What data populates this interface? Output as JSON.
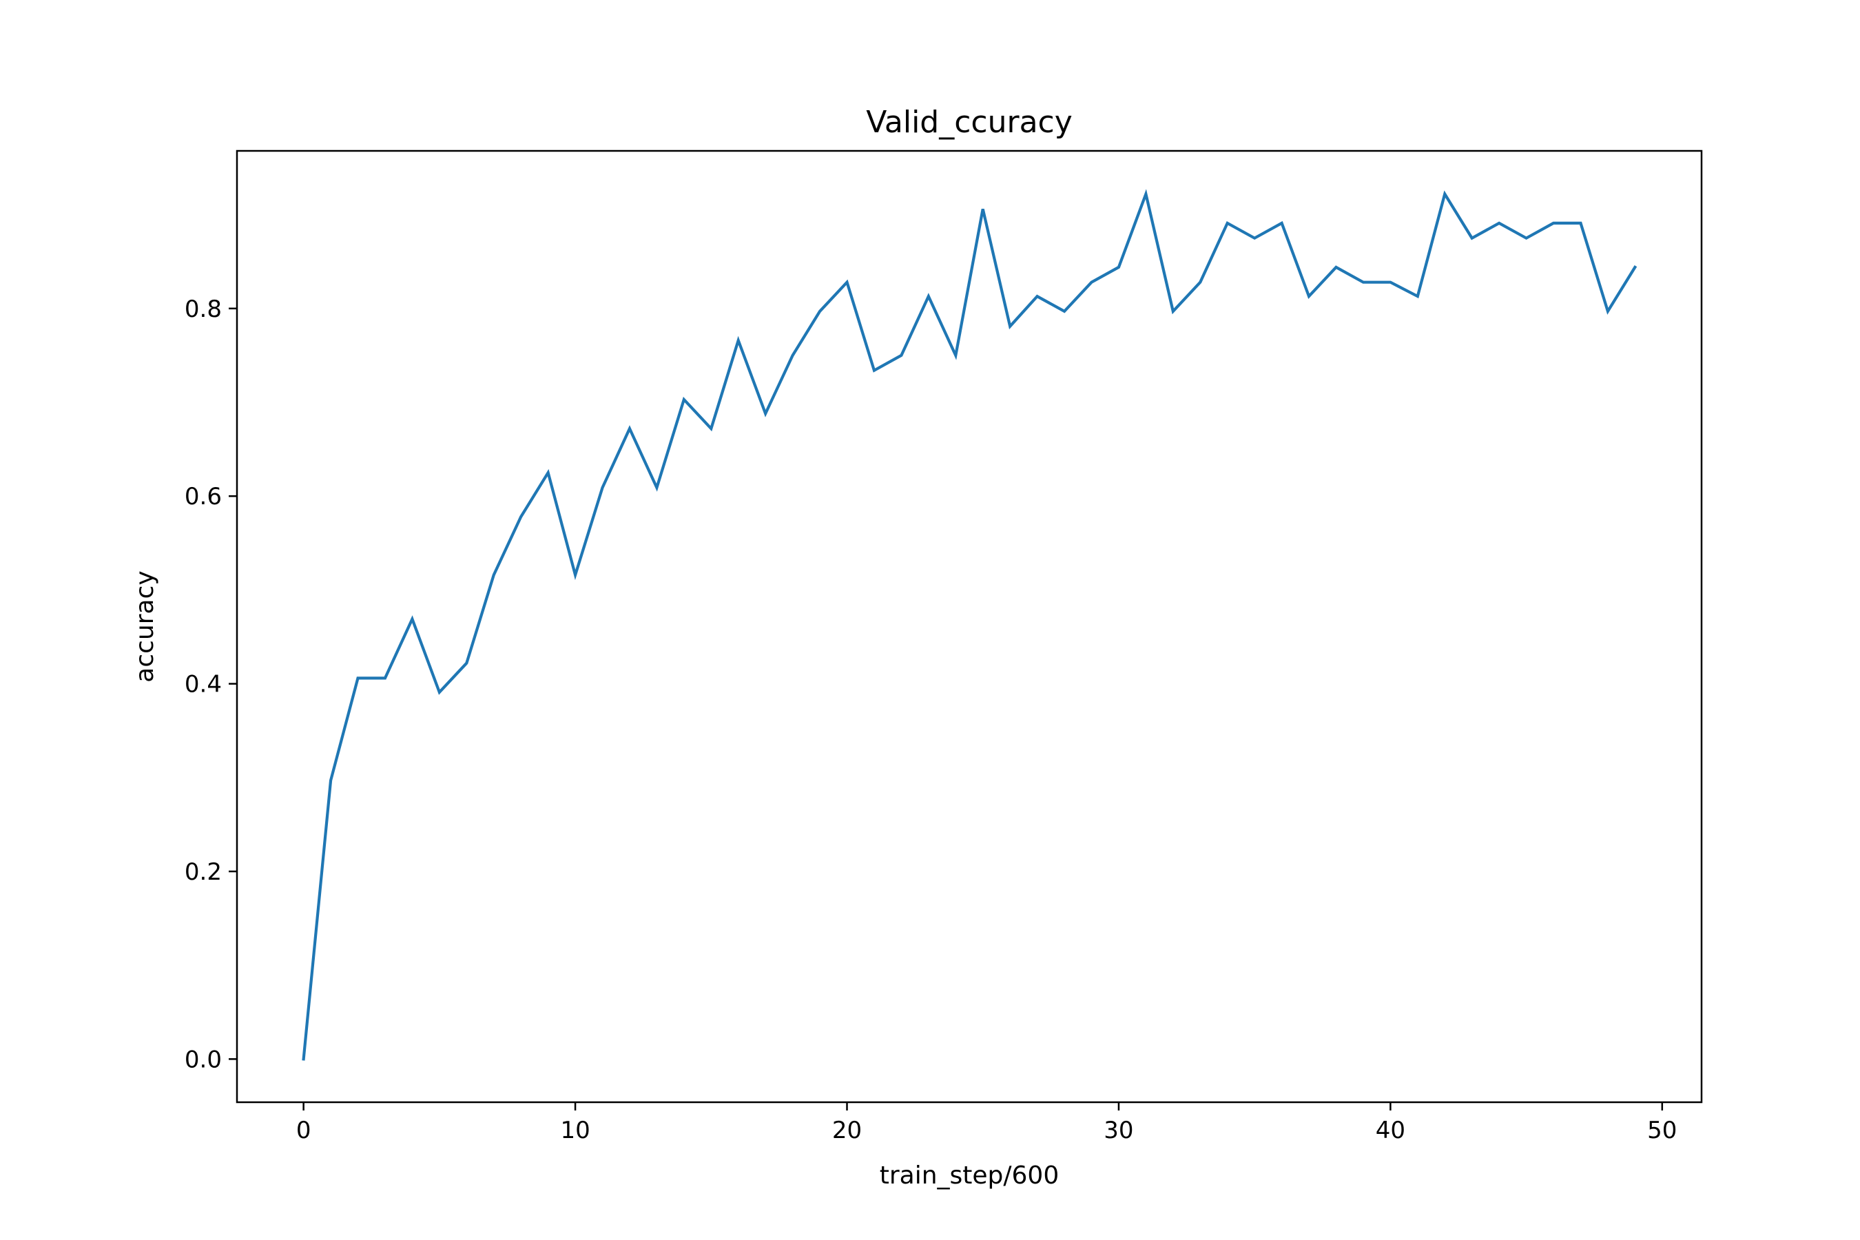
{
  "chart_data": {
    "type": "line",
    "title": "Valid_ccuracy",
    "xlabel": "train_step/600",
    "ylabel": "accuracy",
    "xlim": [
      -2.45,
      51.45
    ],
    "ylim": [
      -0.046,
      0.968
    ],
    "xticks": [
      0,
      10,
      20,
      30,
      40,
      50
    ],
    "yticks": [
      0.0,
      0.2,
      0.4,
      0.6,
      0.8
    ],
    "xtick_labels": [
      "0",
      "10",
      "20",
      "30",
      "40",
      "50"
    ],
    "ytick_labels": [
      "0.0",
      "0.2",
      "0.4",
      "0.6",
      "0.8"
    ],
    "grid": false,
    "line_color": "#1f77b4",
    "x": [
      0,
      1,
      2,
      3,
      4,
      5,
      6,
      7,
      8,
      9,
      10,
      11,
      12,
      13,
      14,
      15,
      16,
      17,
      18,
      19,
      20,
      21,
      22,
      23,
      24,
      25,
      26,
      27,
      28,
      29,
      30,
      31,
      32,
      33,
      34,
      35,
      36,
      37,
      38,
      39,
      40,
      41,
      42,
      43,
      44,
      45,
      46,
      47,
      48,
      49
    ],
    "values": [
      0.0,
      0.297,
      0.406,
      0.406,
      0.469,
      0.391,
      0.422,
      0.516,
      0.578,
      0.625,
      0.516,
      0.609,
      0.672,
      0.609,
      0.703,
      0.672,
      0.766,
      0.688,
      0.75,
      0.797,
      0.828,
      0.734,
      0.75,
      0.813,
      0.75,
      0.906,
      0.781,
      0.813,
      0.797,
      0.828,
      0.844,
      0.922,
      0.797,
      0.828,
      0.891,
      0.875,
      0.891,
      0.813,
      0.844,
      0.828,
      0.828,
      0.813,
      0.922,
      0.875,
      0.891,
      0.875,
      0.891,
      0.891,
      0.797,
      0.844
    ]
  }
}
